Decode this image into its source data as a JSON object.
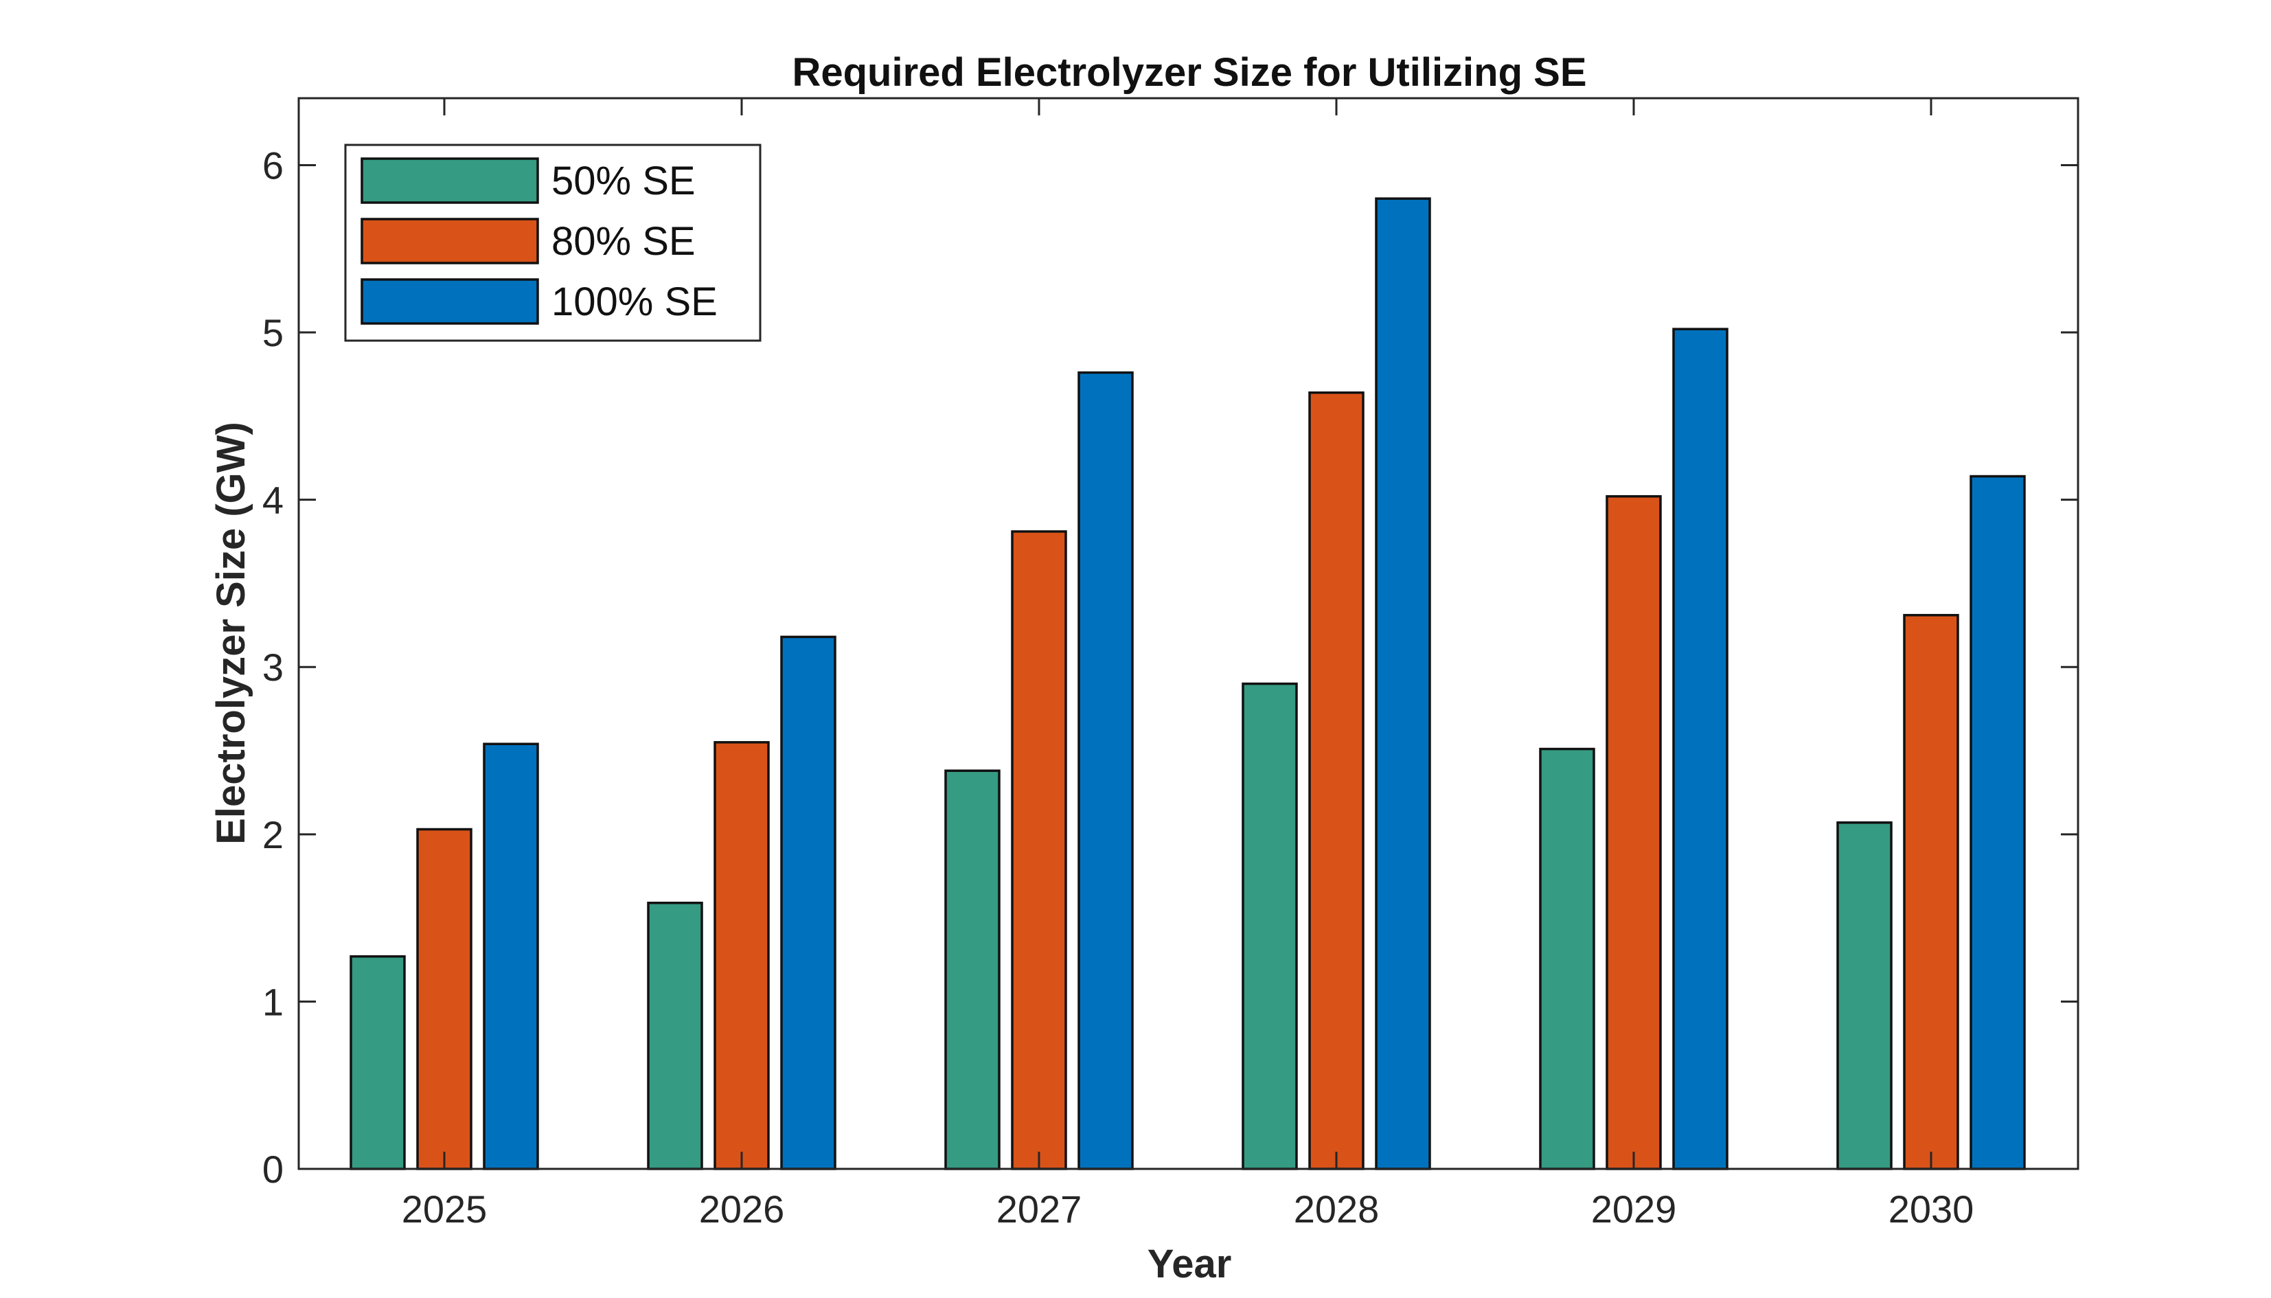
{
  "chart_data": {
    "type": "bar",
    "title": "Required Electrolyzer Size for Utilizing SE",
    "xlabel": "Year",
    "ylabel": "Electrolyzer Size (GW)",
    "categories": [
      "2025",
      "2026",
      "2027",
      "2028",
      "2029",
      "2030"
    ],
    "series": [
      {
        "name": "50% SE",
        "color": "#359B82",
        "values": [
          1.27,
          1.59,
          2.38,
          2.9,
          2.51,
          2.07
        ]
      },
      {
        "name": "80% SE",
        "color": "#D95319",
        "values": [
          2.03,
          2.55,
          3.81,
          4.64,
          4.02,
          3.31
        ]
      },
      {
        "name": "100% SE",
        "color": "#0072BD",
        "values": [
          2.54,
          3.18,
          4.76,
          5.8,
          5.02,
          4.14
        ]
      }
    ],
    "ylim": [
      0,
      6.4
    ],
    "yticks": [
      0,
      1,
      2,
      3,
      4,
      5,
      6
    ],
    "grid": false,
    "legend_position": "top-left"
  }
}
